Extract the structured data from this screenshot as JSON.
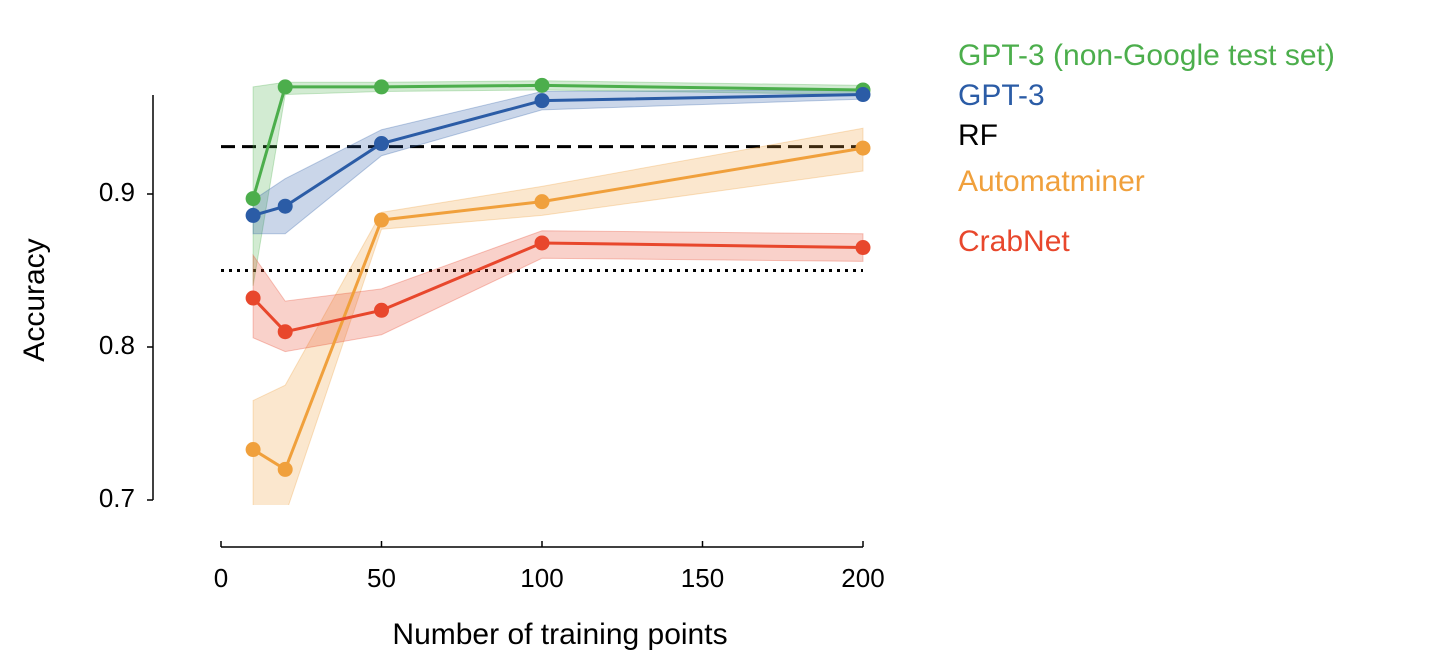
{
  "chart_data": {
    "type": "line",
    "xlabel": "Number of training points",
    "ylabel": "Accuracy",
    "x": [
      10,
      20,
      50,
      100,
      200
    ],
    "xlim": [
      0,
      200
    ],
    "xticks": [
      0,
      50,
      100,
      150,
      200
    ],
    "ylim": [
      0.7,
      0.965
    ],
    "yticks": [
      0.7,
      0.8,
      0.9
    ],
    "series": [
      {
        "name": "GPT-3 (non-Google test set)",
        "color": "#4cae4c",
        "values": [
          0.897,
          0.97,
          0.97,
          0.971,
          0.968
        ],
        "lower": [
          0.84,
          0.965,
          0.967,
          0.968,
          0.965
        ],
        "upper": [
          0.97,
          0.973,
          0.973,
          0.974,
          0.971
        ]
      },
      {
        "name": "GPT-3",
        "color": "#2b5ca6",
        "values": [
          0.886,
          0.892,
          0.933,
          0.961,
          0.965
        ],
        "lower": [
          0.874,
          0.874,
          0.925,
          0.955,
          0.962
        ],
        "upper": [
          0.896,
          0.91,
          0.942,
          0.967,
          0.968
        ]
      },
      {
        "name": "Automatminer",
        "color": "#f0a03c",
        "values": [
          0.733,
          0.72,
          0.883,
          0.895,
          0.93
        ],
        "lower": [
          0.69,
          0.69,
          0.877,
          0.886,
          0.915
        ],
        "upper": [
          0.765,
          0.775,
          0.888,
          0.905,
          0.943
        ]
      },
      {
        "name": "CrabNet",
        "color": "#e8472c",
        "values": [
          0.832,
          0.81,
          0.824,
          0.868,
          0.865
        ],
        "lower": [
          0.806,
          0.797,
          0.808,
          0.858,
          0.856
        ],
        "upper": [
          0.86,
          0.83,
          0.838,
          0.876,
          0.874
        ]
      }
    ],
    "reference_lines": [
      {
        "name": "RF",
        "value": 0.931,
        "style": "dashed",
        "color": "#000000"
      },
      {
        "value": 0.85,
        "style": "dotted",
        "color": "#000000"
      }
    ]
  }
}
